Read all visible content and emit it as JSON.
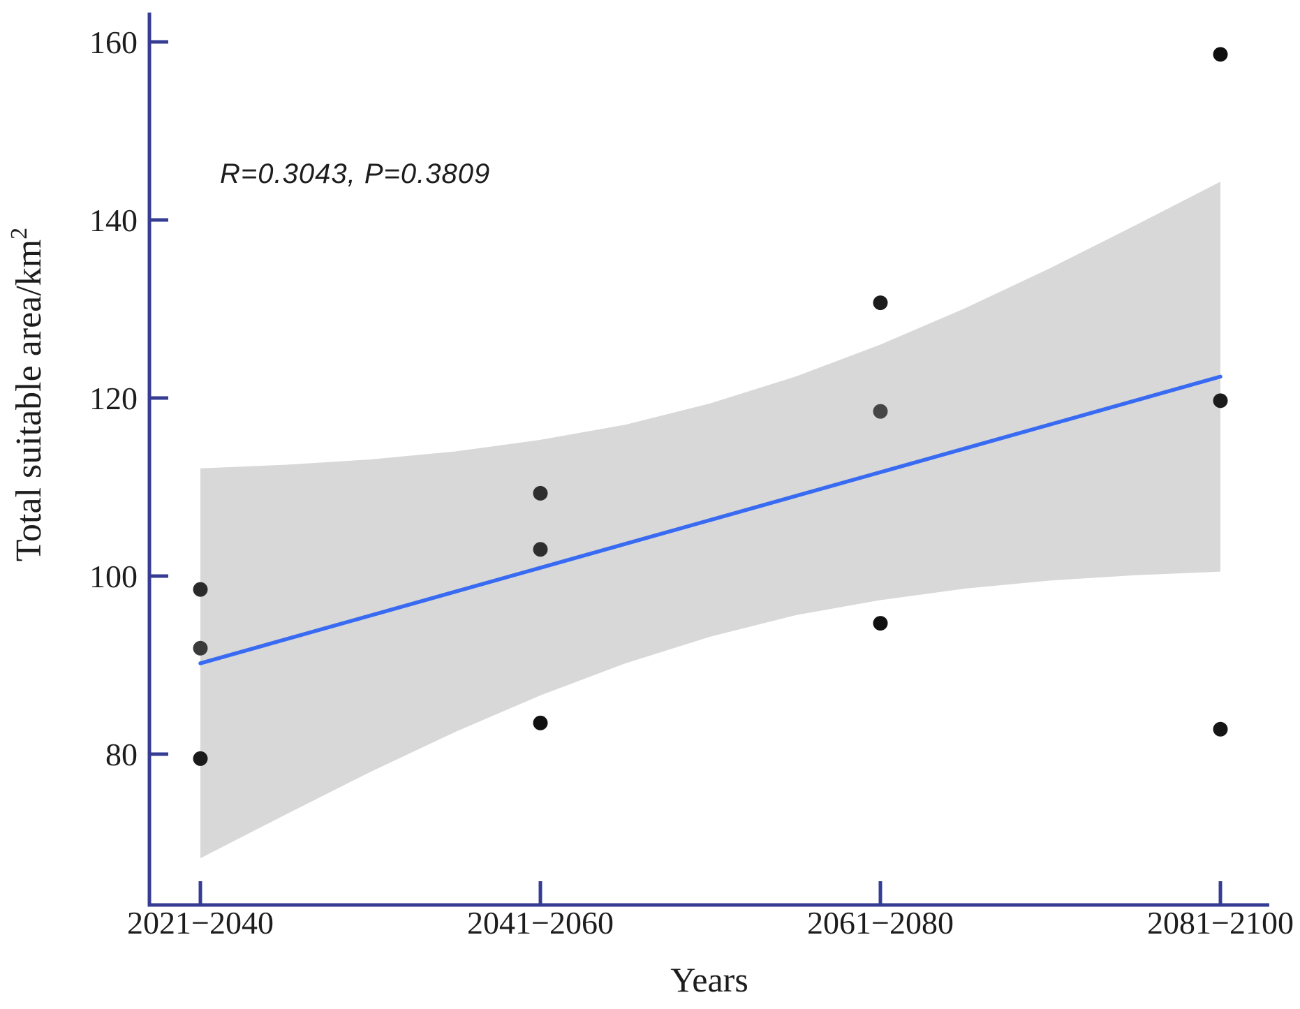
{
  "chart_data": {
    "type": "scatter",
    "title": "",
    "xlabel": "Years",
    "ylabel": "Total suitable area/km²",
    "ylabel_base": "Total suitable area/km",
    "ylabel_superscript": "2",
    "x_categories": [
      "2021−2040",
      "2041−2060",
      "2061−2080",
      "2081−2100"
    ],
    "y_ticks": [
      "80",
      "100",
      "120",
      "140",
      "160"
    ],
    "ylim": [
      63,
      163
    ],
    "grid": false,
    "legend": null,
    "annotation": {
      "text": "R=0.3043,  P=0.3809",
      "R": 0.3043,
      "P": 0.3809
    },
    "series": [
      {
        "name": "Total suitable area",
        "points": [
          {
            "category": "2021−2040",
            "x": 0,
            "y": 98.5,
            "color": "#2a2a2a"
          },
          {
            "category": "2021−2040",
            "x": 0,
            "y": 91.9,
            "color": "#3a3a3a"
          },
          {
            "category": "2021−2040",
            "x": 0,
            "y": 79.5,
            "color": "#1a1a1a"
          },
          {
            "category": "2041−2060",
            "x": 1,
            "y": 109.3,
            "color": "#2e2e2e"
          },
          {
            "category": "2041−2060",
            "x": 1,
            "y": 103.0,
            "color": "#2e2e2e"
          },
          {
            "category": "2041−2060",
            "x": 1,
            "y": 83.5,
            "color": "#111111"
          },
          {
            "category": "2061−2080",
            "x": 2,
            "y": 130.7,
            "color": "#1c1c1c"
          },
          {
            "category": "2061−2080",
            "x": 2,
            "y": 118.5,
            "color": "#454545"
          },
          {
            "category": "2061−2080",
            "x": 2,
            "y": 94.7,
            "color": "#111111"
          },
          {
            "category": "2081−2100",
            "x": 3,
            "y": 158.6,
            "color": "#0f0f0f"
          },
          {
            "category": "2081−2100",
            "x": 3,
            "y": 119.7,
            "color": "#1c1c1c"
          },
          {
            "category": "2081−2100",
            "x": 3,
            "y": 82.8,
            "color": "#161616"
          }
        ]
      }
    ],
    "regression_line": {
      "x": [
        0,
        3
      ],
      "y": [
        90.2,
        122.4
      ]
    },
    "confidence_band": {
      "x": [
        0,
        0.25,
        0.5,
        0.75,
        1,
        1.25,
        1.5,
        1.75,
        2,
        2.25,
        2.5,
        2.75,
        3
      ],
      "top": [
        112.1,
        112.5,
        113.1,
        114.0,
        115.3,
        117.0,
        119.4,
        122.4,
        126.0,
        130.1,
        134.6,
        139.4,
        144.3
      ],
      "bottom": [
        68.3,
        73.2,
        78.0,
        82.5,
        86.6,
        90.2,
        93.2,
        95.6,
        97.3,
        98.6,
        99.5,
        100.1,
        100.5
      ]
    },
    "colors": {
      "axis": "#363c94",
      "regression_line": "#386bf2",
      "confidence_band": "#d8d8d8",
      "point_default": "#1d1d1d",
      "text": "#1d1d1d"
    }
  }
}
